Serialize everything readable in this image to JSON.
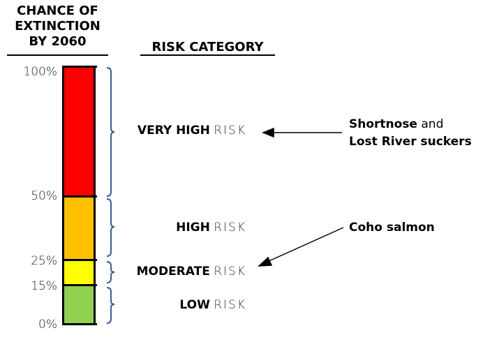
{
  "left_header": [
    "CHANCE OF",
    "EXTINCTION",
    "BY 2060"
  ],
  "right_header": "RISK CATEGORY",
  "ticks": [
    "100%",
    "50%",
    "25%",
    "15%",
    "0%"
  ],
  "segments": [
    {
      "from": 50,
      "to": 100,
      "color": "#ff0000"
    },
    {
      "from": 25,
      "to": 50,
      "color": "#ffc000"
    },
    {
      "from": 15,
      "to": 25,
      "color": "#ffff00"
    },
    {
      "from": 0,
      "to": 15,
      "color": "#92d050"
    }
  ],
  "categories": [
    {
      "bold": "VERY HIGH",
      "rest": "RISK"
    },
    {
      "bold": "HIGH",
      "rest": "RISK"
    },
    {
      "bold": "MODERATE",
      "rest": "RISK"
    },
    {
      "bold": "LOW",
      "rest": "RISK"
    }
  ],
  "species": [
    {
      "line1_bold": "Shortnose",
      "line1_rest": " and",
      "line2": "Lost River suckers",
      "points_to": "VERY HIGH RISK"
    },
    {
      "line1_bold": "Coho salmon",
      "points_to": "MODERATE RISK"
    }
  ],
  "brace_color": "#2e5fa8"
}
